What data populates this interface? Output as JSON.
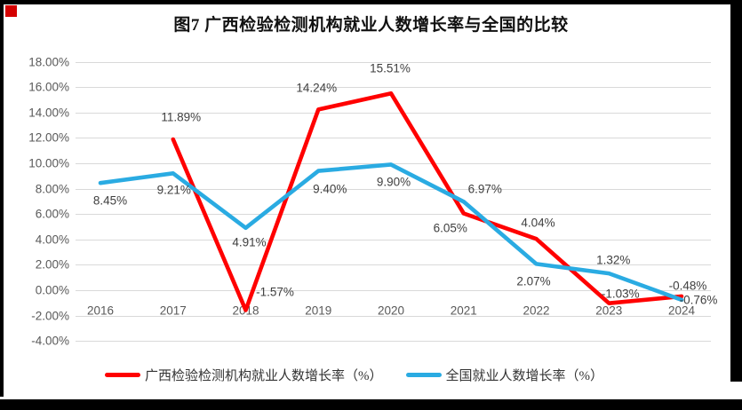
{
  "page": {
    "border_color": "#000000",
    "corner_marker_color": "#d40000",
    "background": "#ffffff"
  },
  "chart_data": {
    "type": "line",
    "title": "图7 广西检验检测机构就业人数增长率与全国的比较",
    "categories": [
      "2016",
      "2017",
      "2018",
      "2019",
      "2020",
      "2021",
      "2022",
      "2023",
      "2024"
    ],
    "series": [
      {
        "name": "广西检验检测机构就业人数增长率（%）",
        "color": "#ff0000",
        "values": [
          null,
          11.89,
          -1.57,
          14.24,
          15.51,
          6.05,
          4.04,
          -1.03,
          -0.48
        ],
        "labels": [
          "",
          "11.89%",
          "-1.57%",
          "14.24%",
          "15.51%",
          "6.05%",
          "4.04%",
          "-1.03%",
          "-0.48%"
        ]
      },
      {
        "name": "全国就业人数增长率（%）",
        "color": "#2aabe2",
        "values": [
          8.45,
          9.21,
          4.91,
          9.4,
          9.9,
          6.97,
          2.07,
          1.32,
          -0.76
        ],
        "labels": [
          "8.45%",
          "9.21%",
          "4.91%",
          "9.40%",
          "9.90%",
          "6.97%",
          "2.07%",
          "1.32%",
          "-0.76%"
        ]
      }
    ],
    "ylim": [
      -4,
      18
    ],
    "ytick_step": 2,
    "ytick_labels": [
      "18.00%",
      "16.00%",
      "14.00%",
      "12.00%",
      "10.00%",
      "8.00%",
      "6.00%",
      "4.00%",
      "2.00%",
      "0.00%",
      "-2.00%",
      "-4.00%"
    ],
    "grid": true,
    "gridline_color": "#d9d9d9",
    "axis_text_color": "#595959",
    "data_label_color": "#3f3f3f",
    "legend_position": "bottom"
  }
}
